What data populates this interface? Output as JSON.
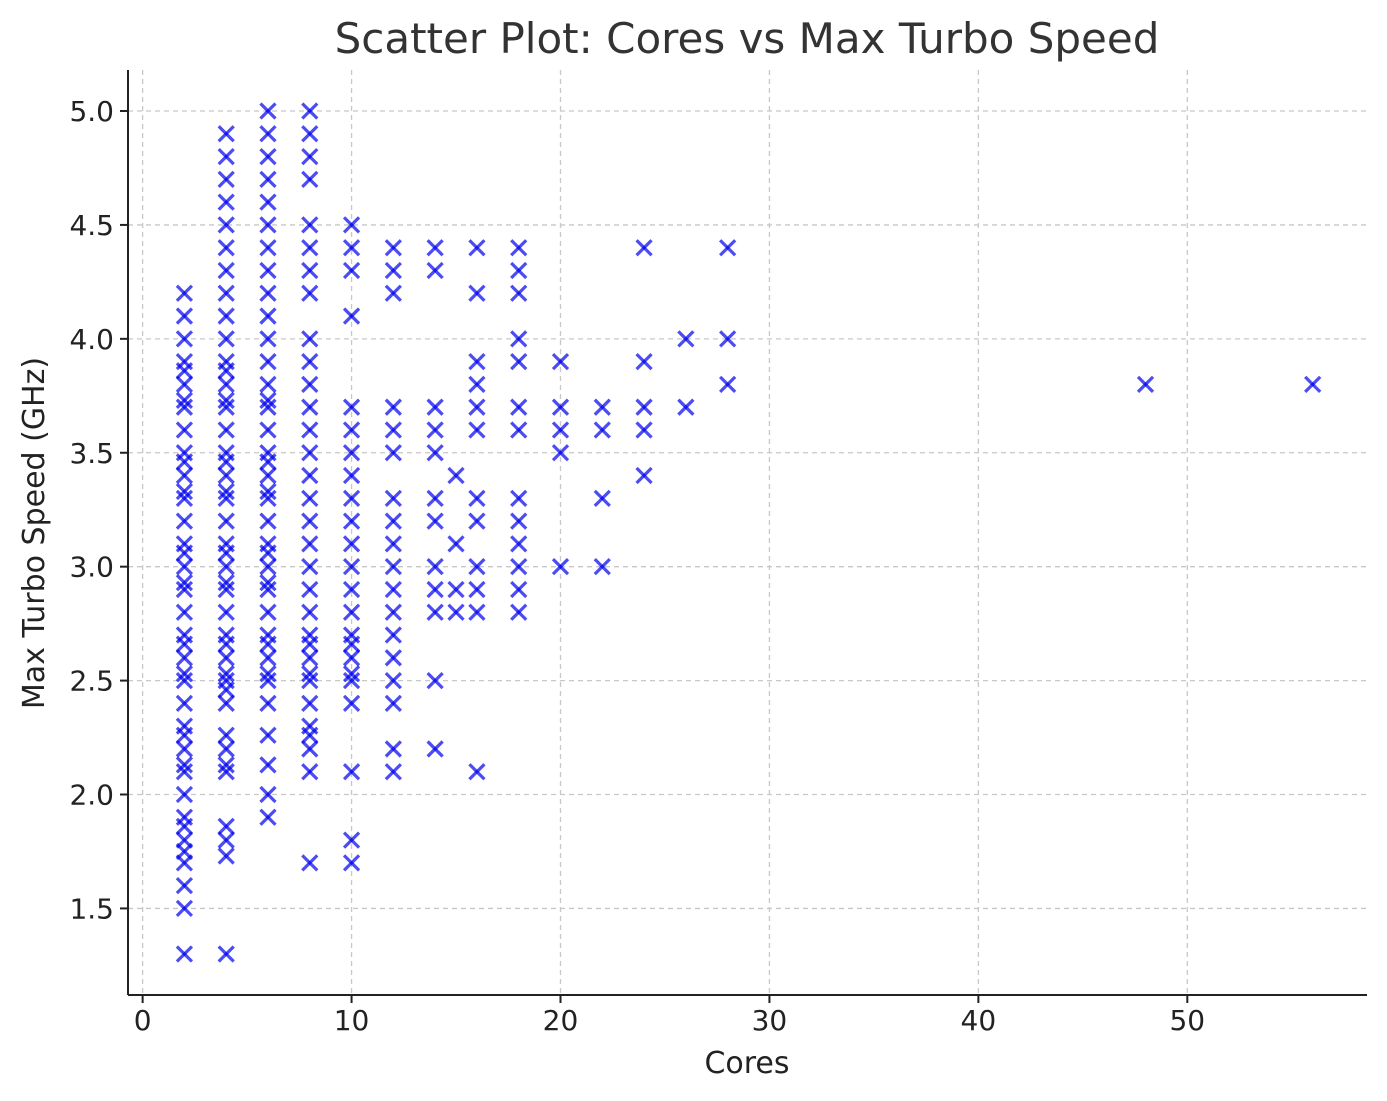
{
  "chart_data": {
    "type": "scatter",
    "title": "Scatter Plot: Cores vs Max Turbo Speed",
    "xlabel": "Cores",
    "ylabel": "Max Turbo Speed (GHz)",
    "xlim": [
      -0.7,
      58.6
    ],
    "ylim": [
      1.12,
      5.18
    ],
    "xticks": [
      0,
      10,
      20,
      30,
      40,
      50
    ],
    "yticks": [
      1.5,
      2.0,
      2.5,
      3.0,
      3.5,
      4.0,
      4.5,
      5.0
    ],
    "ytick_labels": [
      "1.5",
      "2.0",
      "2.5",
      "3.0",
      "3.5",
      "4.0",
      "4.5",
      "5.0"
    ],
    "grid": true,
    "marker": "x",
    "marker_color": "#0000ee",
    "marker_alpha": 0.7,
    "series": [
      {
        "points": [
          [
            2,
            1.3
          ],
          [
            2,
            1.5
          ],
          [
            2,
            1.6
          ],
          [
            2,
            1.7
          ],
          [
            2,
            1.75
          ],
          [
            2,
            1.8
          ],
          [
            2,
            1.86
          ],
          [
            2,
            1.9
          ],
          [
            2,
            2.0
          ],
          [
            2,
            2.1
          ],
          [
            2,
            2.13
          ],
          [
            2,
            2.2
          ],
          [
            2,
            2.26
          ],
          [
            2,
            2.3
          ],
          [
            2,
            2.4
          ],
          [
            2,
            2.5
          ],
          [
            2,
            2.53
          ],
          [
            2,
            2.6
          ],
          [
            2,
            2.66
          ],
          [
            2,
            2.7
          ],
          [
            2,
            2.8
          ],
          [
            2,
            2.9
          ],
          [
            2,
            2.93
          ],
          [
            2,
            3.0
          ],
          [
            2,
            3.06
          ],
          [
            2,
            3.1
          ],
          [
            2,
            3.2
          ],
          [
            2,
            3.3
          ],
          [
            2,
            3.33
          ],
          [
            2,
            3.4
          ],
          [
            2,
            3.46
          ],
          [
            2,
            3.5
          ],
          [
            2,
            3.6
          ],
          [
            2,
            3.7
          ],
          [
            2,
            3.73
          ],
          [
            2,
            3.8
          ],
          [
            2,
            3.86
          ],
          [
            2,
            3.9
          ],
          [
            2,
            4.0
          ],
          [
            2,
            4.1
          ],
          [
            2,
            4.2
          ],
          [
            4,
            1.3
          ],
          [
            4,
            1.73
          ],
          [
            4,
            1.8
          ],
          [
            4,
            1.86
          ],
          [
            4,
            2.1
          ],
          [
            4,
            2.13
          ],
          [
            4,
            2.2
          ],
          [
            4,
            2.26
          ],
          [
            4,
            2.4
          ],
          [
            4,
            2.46
          ],
          [
            4,
            2.5
          ],
          [
            4,
            2.53
          ],
          [
            4,
            2.6
          ],
          [
            4,
            2.66
          ],
          [
            4,
            2.7
          ],
          [
            4,
            2.8
          ],
          [
            4,
            2.9
          ],
          [
            4,
            2.93
          ],
          [
            4,
            3.0
          ],
          [
            4,
            3.06
          ],
          [
            4,
            3.1
          ],
          [
            4,
            3.2
          ],
          [
            4,
            3.3
          ],
          [
            4,
            3.33
          ],
          [
            4,
            3.4
          ],
          [
            4,
            3.46
          ],
          [
            4,
            3.5
          ],
          [
            4,
            3.6
          ],
          [
            4,
            3.7
          ],
          [
            4,
            3.73
          ],
          [
            4,
            3.8
          ],
          [
            4,
            3.86
          ],
          [
            4,
            3.9
          ],
          [
            4,
            4.0
          ],
          [
            4,
            4.1
          ],
          [
            4,
            4.2
          ],
          [
            4,
            4.3
          ],
          [
            4,
            4.4
          ],
          [
            4,
            4.5
          ],
          [
            4,
            4.6
          ],
          [
            4,
            4.7
          ],
          [
            4,
            4.8
          ],
          [
            4,
            4.9
          ],
          [
            6,
            1.9
          ],
          [
            6,
            2.0
          ],
          [
            6,
            2.13
          ],
          [
            6,
            2.26
          ],
          [
            6,
            2.4
          ],
          [
            6,
            2.5
          ],
          [
            6,
            2.53
          ],
          [
            6,
            2.6
          ],
          [
            6,
            2.66
          ],
          [
            6,
            2.7
          ],
          [
            6,
            2.8
          ],
          [
            6,
            2.9
          ],
          [
            6,
            2.93
          ],
          [
            6,
            3.0
          ],
          [
            6,
            3.06
          ],
          [
            6,
            3.1
          ],
          [
            6,
            3.2
          ],
          [
            6,
            3.3
          ],
          [
            6,
            3.33
          ],
          [
            6,
            3.4
          ],
          [
            6,
            3.46
          ],
          [
            6,
            3.5
          ],
          [
            6,
            3.6
          ],
          [
            6,
            3.7
          ],
          [
            6,
            3.73
          ],
          [
            6,
            3.8
          ],
          [
            6,
            3.9
          ],
          [
            6,
            4.0
          ],
          [
            6,
            4.1
          ],
          [
            6,
            4.2
          ],
          [
            6,
            4.3
          ],
          [
            6,
            4.4
          ],
          [
            6,
            4.5
          ],
          [
            6,
            4.6
          ],
          [
            6,
            4.7
          ],
          [
            6,
            4.8
          ],
          [
            6,
            4.9
          ],
          [
            6,
            5.0
          ],
          [
            8,
            1.7
          ],
          [
            8,
            2.1
          ],
          [
            8,
            2.2
          ],
          [
            8,
            2.26
          ],
          [
            8,
            2.3
          ],
          [
            8,
            2.4
          ],
          [
            8,
            2.5
          ],
          [
            8,
            2.53
          ],
          [
            8,
            2.6
          ],
          [
            8,
            2.66
          ],
          [
            8,
            2.7
          ],
          [
            8,
            2.8
          ],
          [
            8,
            2.9
          ],
          [
            8,
            3.0
          ],
          [
            8,
            3.1
          ],
          [
            8,
            3.2
          ],
          [
            8,
            3.3
          ],
          [
            8,
            3.4
          ],
          [
            8,
            3.5
          ],
          [
            8,
            3.6
          ],
          [
            8,
            3.7
          ],
          [
            8,
            3.8
          ],
          [
            8,
            3.9
          ],
          [
            8,
            4.0
          ],
          [
            8,
            4.2
          ],
          [
            8,
            4.3
          ],
          [
            8,
            4.4
          ],
          [
            8,
            4.5
          ],
          [
            8,
            4.7
          ],
          [
            8,
            4.8
          ],
          [
            8,
            4.9
          ],
          [
            8,
            5.0
          ],
          [
            10,
            1.7
          ],
          [
            10,
            1.8
          ],
          [
            10,
            2.1
          ],
          [
            10,
            2.4
          ],
          [
            10,
            2.5
          ],
          [
            10,
            2.53
          ],
          [
            10,
            2.6
          ],
          [
            10,
            2.66
          ],
          [
            10,
            2.7
          ],
          [
            10,
            2.8
          ],
          [
            10,
            2.9
          ],
          [
            10,
            3.0
          ],
          [
            10,
            3.1
          ],
          [
            10,
            3.2
          ],
          [
            10,
            3.3
          ],
          [
            10,
            3.4
          ],
          [
            10,
            3.5
          ],
          [
            10,
            3.6
          ],
          [
            10,
            3.7
          ],
          [
            10,
            4.1
          ],
          [
            10,
            4.3
          ],
          [
            10,
            4.4
          ],
          [
            10,
            4.5
          ],
          [
            12,
            2.1
          ],
          [
            12,
            2.2
          ],
          [
            12,
            2.4
          ],
          [
            12,
            2.5
          ],
          [
            12,
            2.6
          ],
          [
            12,
            2.7
          ],
          [
            12,
            2.8
          ],
          [
            12,
            2.9
          ],
          [
            12,
            3.0
          ],
          [
            12,
            3.1
          ],
          [
            12,
            3.2
          ],
          [
            12,
            3.3
          ],
          [
            12,
            3.5
          ],
          [
            12,
            3.6
          ],
          [
            12,
            3.7
          ],
          [
            12,
            4.2
          ],
          [
            12,
            4.3
          ],
          [
            12,
            4.4
          ],
          [
            14,
            2.2
          ],
          [
            14,
            2.5
          ],
          [
            14,
            2.8
          ],
          [
            14,
            2.9
          ],
          [
            14,
            3.0
          ],
          [
            14,
            3.2
          ],
          [
            14,
            3.3
          ],
          [
            14,
            3.5
          ],
          [
            14,
            3.6
          ],
          [
            14,
            3.7
          ],
          [
            14,
            4.3
          ],
          [
            14,
            4.4
          ],
          [
            15,
            2.8
          ],
          [
            15,
            2.9
          ],
          [
            15,
            3.1
          ],
          [
            15,
            3.4
          ],
          [
            16,
            2.1
          ],
          [
            16,
            2.8
          ],
          [
            16,
            2.9
          ],
          [
            16,
            3.0
          ],
          [
            16,
            3.2
          ],
          [
            16,
            3.3
          ],
          [
            16,
            3.6
          ],
          [
            16,
            3.7
          ],
          [
            16,
            3.8
          ],
          [
            16,
            3.9
          ],
          [
            16,
            4.2
          ],
          [
            16,
            4.4
          ],
          [
            18,
            2.8
          ],
          [
            18,
            2.9
          ],
          [
            18,
            3.0
          ],
          [
            18,
            3.1
          ],
          [
            18,
            3.2
          ],
          [
            18,
            3.3
          ],
          [
            18,
            3.6
          ],
          [
            18,
            3.7
          ],
          [
            18,
            3.9
          ],
          [
            18,
            4.0
          ],
          [
            18,
            4.2
          ],
          [
            18,
            4.3
          ],
          [
            18,
            4.4
          ],
          [
            20,
            3.0
          ],
          [
            20,
            3.5
          ],
          [
            20,
            3.6
          ],
          [
            20,
            3.7
          ],
          [
            20,
            3.9
          ],
          [
            22,
            3.0
          ],
          [
            22,
            3.3
          ],
          [
            22,
            3.6
          ],
          [
            22,
            3.7
          ],
          [
            24,
            3.4
          ],
          [
            24,
            3.6
          ],
          [
            24,
            3.7
          ],
          [
            24,
            3.9
          ],
          [
            24,
            4.4
          ],
          [
            26,
            3.7
          ],
          [
            26,
            4.0
          ],
          [
            28,
            3.8
          ],
          [
            28,
            4.0
          ],
          [
            28,
            4.4
          ],
          [
            48,
            3.8
          ],
          [
            56,
            3.8
          ]
        ]
      }
    ]
  }
}
